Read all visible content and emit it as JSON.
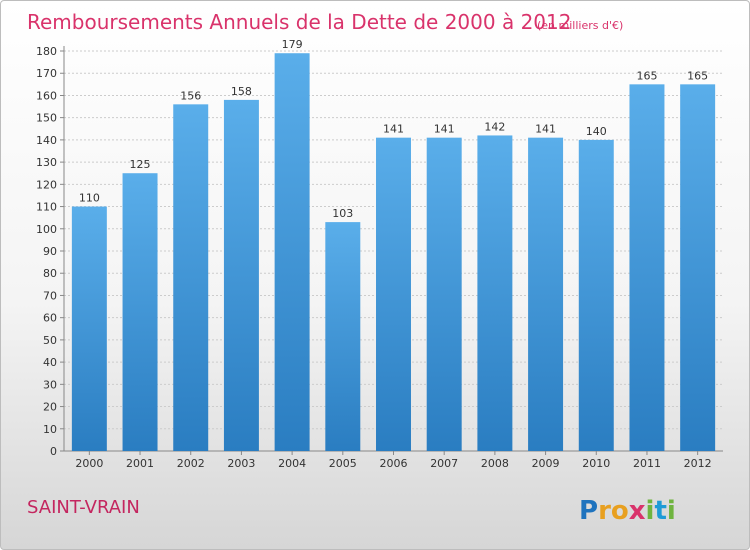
{
  "title": "Remboursements Annuels de la Dette de 2000 à 2012",
  "unit": "(en milliers d'€)",
  "commune": "SAINT-VRAIN",
  "logo": {
    "letters": [
      {
        "ch": "P",
        "color": "#1e73be"
      },
      {
        "ch": "r",
        "color": "#e8a020"
      },
      {
        "ch": "o",
        "color": "#e8a020"
      },
      {
        "ch": "x",
        "color": "#d9336b"
      },
      {
        "ch": "i",
        "color": "#6fb43f"
      },
      {
        "ch": "t",
        "color": "#1e9bd7"
      },
      {
        "ch": "i",
        "color": "#6fb43f"
      }
    ]
  },
  "colors": {
    "bar_top": "#5aaeea",
    "bar_bottom": "#2a7dc1",
    "title": "#d9336b",
    "grid": "#cccccc"
  },
  "chart_data": {
    "type": "bar",
    "categories": [
      "2000",
      "2001",
      "2002",
      "2003",
      "2004",
      "2005",
      "2006",
      "2007",
      "2008",
      "2009",
      "2010",
      "2011",
      "2012"
    ],
    "values": [
      110,
      125,
      156,
      158,
      179,
      103,
      141,
      141,
      142,
      141,
      140,
      165,
      165
    ],
    "ylim": [
      0,
      180
    ],
    "yticks": [
      0,
      10,
      20,
      30,
      40,
      50,
      60,
      70,
      80,
      90,
      100,
      110,
      120,
      130,
      140,
      150,
      160,
      170,
      180
    ],
    "grid": true,
    "legend": "none"
  }
}
